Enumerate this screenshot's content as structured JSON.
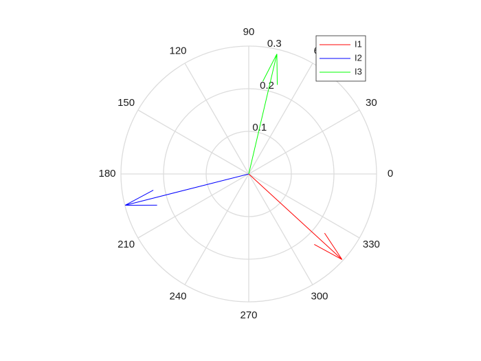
{
  "chart_data": {
    "type": "polar-compass",
    "title": "",
    "r_ticks": [
      "0.1",
      "0.2",
      "0.3"
    ],
    "r_tick_values": [
      0.1,
      0.2,
      0.3
    ],
    "r_max": 0.3,
    "theta_ticks": [
      "0",
      "30",
      "60",
      "90",
      "120",
      "150",
      "180",
      "210",
      "240",
      "270",
      "300",
      "330"
    ],
    "theta_tick_values": [
      0,
      30,
      60,
      90,
      120,
      150,
      180,
      210,
      240,
      270,
      300,
      330
    ],
    "grid": true,
    "legend": {
      "position": "top-right"
    },
    "series": [
      {
        "name": "I1",
        "color": "#ff0000",
        "magnitude": 0.297,
        "angle_deg": -42.5
      },
      {
        "name": "I2",
        "color": "#0000ff",
        "magnitude": 0.299,
        "angle_deg": 194.2
      },
      {
        "name": "I3",
        "color": "#00ff00",
        "magnitude": 0.289,
        "angle_deg": 76.8
      }
    ]
  }
}
